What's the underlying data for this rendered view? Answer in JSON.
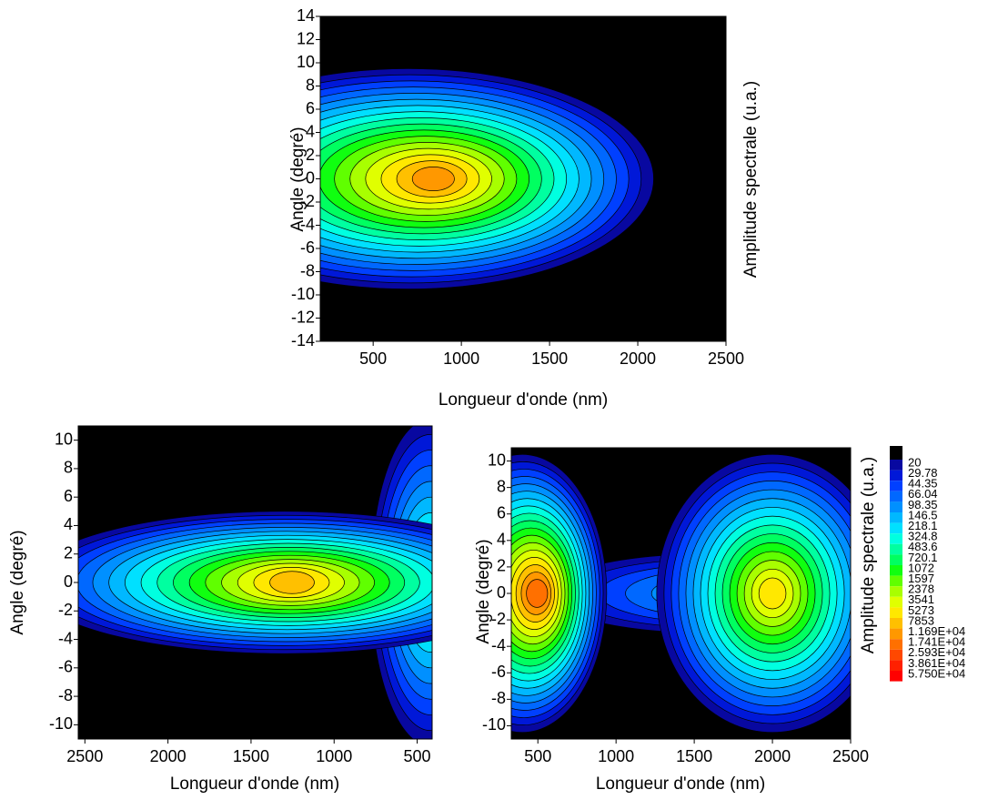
{
  "chart_data": [
    {
      "type": "contour",
      "xlabel": "Longueur d'onde (nm)",
      "ylabel": "Angle (degré)",
      "y2label": "Amplitude spectrale (u.a.)",
      "xlim": [
        200,
        2500
      ],
      "ylim": [
        -14,
        14
      ],
      "xticks": [
        500,
        1000,
        1500,
        2000,
        2500
      ],
      "yticks": [
        14,
        12,
        10,
        8,
        6,
        4,
        2,
        0,
        -2,
        -4,
        -6,
        -8,
        -10,
        -12,
        -14
      ]
    },
    {
      "type": "contour",
      "xlabel": "Longueur d'onde (nm)",
      "ylabel": "Angle (degré)",
      "xlim": [
        2540,
        410
      ],
      "ylim": [
        -11,
        11
      ],
      "xticks": [
        2500,
        2000,
        1500,
        1000,
        500
      ],
      "yticks": [
        10,
        8,
        6,
        4,
        2,
        0,
        -2,
        -4,
        -6,
        -8,
        -10
      ]
    },
    {
      "type": "contour",
      "xlabel": "Longueur d'onde (nm)",
      "ylabel": "Angle (degré)",
      "y2label": "Amplitude spectrale (u.a.)",
      "xlim": [
        330,
        2500
      ],
      "ylim": [
        -11,
        11
      ],
      "xticks": [
        500,
        1000,
        1500,
        2000,
        2500
      ],
      "yticks": [
        10,
        8,
        6,
        4,
        2,
        0,
        -2,
        -4,
        -6,
        -8,
        -10
      ],
      "colorbar": {
        "below_color": "#000000",
        "levels": [
          20.0,
          29.78,
          44.35,
          66.04,
          98.35,
          146.5,
          218.1,
          324.8,
          483.6,
          720.1,
          1072,
          1597,
          2378,
          3541,
          5273,
          7853,
          {
            "value": 11690,
            "label": "1.169E+04"
          },
          {
            "value": 17410,
            "label": "1.741E+04"
          },
          {
            "value": 25930,
            "label": "2.593E+04"
          },
          {
            "value": 38610,
            "label": "3.861E+04"
          },
          {
            "value": 57500,
            "label": "5.750E+04"
          }
        ],
        "level_labels": [
          "20.00"
        ],
        "colors": [
          "#0808a0",
          "#0018d8",
          "#0040ff",
          "#0068ff",
          "#0090ff",
          "#00b8ff",
          "#00e0ff",
          "#00ffe0",
          "#00ffa0",
          "#00ff60",
          "#10ff10",
          "#60ff00",
          "#a8ff00",
          "#e0ff00",
          "#ffe800",
          "#ffc000",
          "#ff9800",
          "#ff7000",
          "#ff4800",
          "#ff2000",
          "#ff0000"
        ]
      }
    }
  ]
}
